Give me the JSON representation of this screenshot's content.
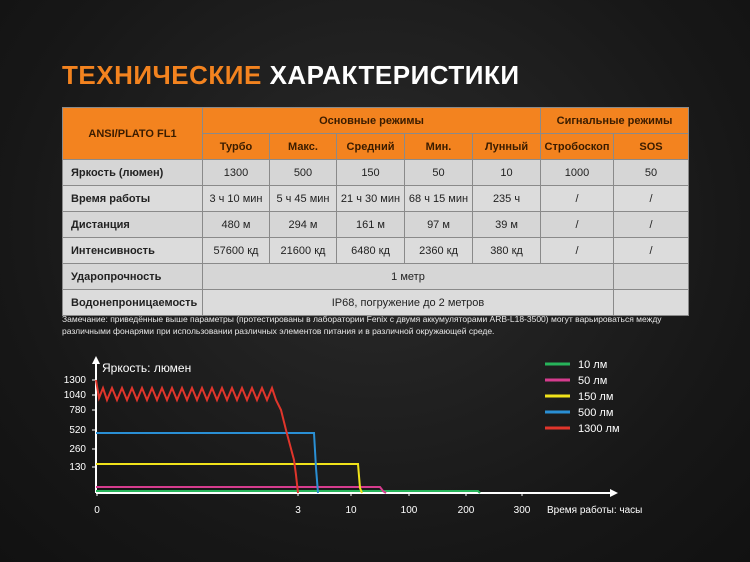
{
  "title": {
    "part1": "ТЕХНИЧЕСКИЕ",
    "part2": "ХАРАКТЕРИСТИКИ"
  },
  "table": {
    "model": "ANSI/PLATO FL1",
    "group_main": "Основные режимы",
    "group_signal": "Сигнальные режимы",
    "modes": [
      "Турбо",
      "Макс.",
      "Средний",
      "Мин.",
      "Лунный",
      "Стробоскоп",
      "SOS"
    ],
    "rows": [
      {
        "label": "Яркость (люмен)",
        "cells": [
          "1300",
          "500",
          "150",
          "50",
          "10",
          "1000",
          "50"
        ]
      },
      {
        "label": "Время работы",
        "cells": [
          "3 ч 10 мин",
          "5 ч 45 мин",
          "21 ч 30 мин",
          "68 ч 15 мин",
          "235 ч",
          "/",
          "/"
        ]
      },
      {
        "label": "Дистанция",
        "cells": [
          "480 м",
          "294 м",
          "161 м",
          "97 м",
          "39 м",
          "/",
          "/"
        ]
      },
      {
        "label": "Интенсивность",
        "cells": [
          "57600 кд",
          "21600 кд",
          "6480 кд",
          "2360 кд",
          "380 кд",
          "/",
          "/"
        ]
      }
    ],
    "impact": {
      "label": "Ударопрочность",
      "value": "1 метр"
    },
    "water": {
      "label": "Водонепроницаемость",
      "value": "IP68, погружение до 2 метров"
    }
  },
  "note": "Замечание: приведённые выше параметры (протестированы в лаборатории Fenix с двумя аккумуляторами ARB-L18-3500) могут варьироваться между различными фонарями при использовании различных элементов питания и в различной окружающей среде.",
  "chart_data": {
    "type": "line",
    "ylabel": "Яркость: люмен",
    "xlabel": "Время работы: часы",
    "y_ticks": [
      "1300",
      "1040",
      "780",
      "520",
      "260",
      "130"
    ],
    "x_ticks": [
      "0",
      "3",
      "10",
      "100",
      "200",
      "300"
    ],
    "series": [
      {
        "name": "10 лм",
        "color": "#27b35a",
        "time_to_drop_h": 235,
        "steady_lumens": 10
      },
      {
        "name": "50 лм",
        "color": "#d63c8e",
        "time_to_drop_h": 68.25,
        "steady_lumens": 50
      },
      {
        "name": "150 лм",
        "color": "#f0e21a",
        "time_to_drop_h": 21.5,
        "steady_lumens": 150
      },
      {
        "name": "500 лм",
        "color": "#2a8fd4",
        "time_to_drop_h": 5.75,
        "steady_lumens": 500
      },
      {
        "name": "1300 лм",
        "color": "#e0352b",
        "time_to_drop_h": 3.17,
        "steady_lumens": 1300
      }
    ]
  }
}
